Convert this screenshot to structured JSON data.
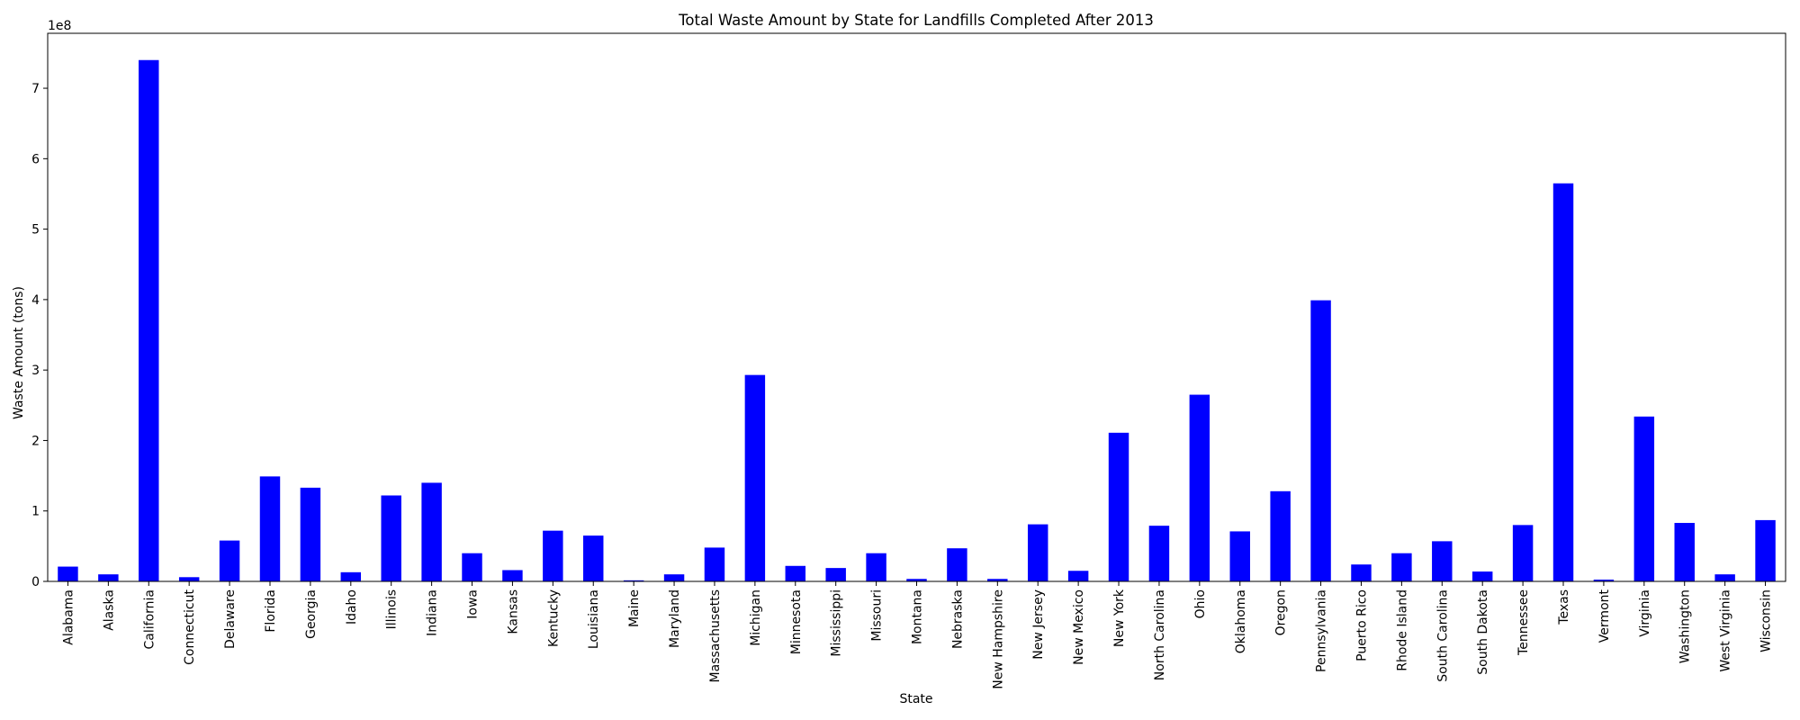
{
  "chart_data": {
    "type": "bar",
    "title": "Total Waste Amount by State for Landfills Completed After 2013",
    "xlabel": "State",
    "ylabel": "Waste Amount (tons)",
    "y_offset_label": "1e8",
    "ylim": [
      0,
      778000000.0
    ],
    "y_ticks": [
      0,
      100000000.0,
      200000000.0,
      300000000.0,
      400000000.0,
      500000000.0,
      600000000.0,
      700000000.0
    ],
    "y_tick_labels": [
      "0",
      "1",
      "2",
      "3",
      "4",
      "5",
      "6",
      "7"
    ],
    "grid": false,
    "legend": "none",
    "bar_color": "#0000ff",
    "categories": [
      "Alabama",
      "Alaska",
      "California",
      "Connecticut",
      "Delaware",
      "Florida",
      "Georgia",
      "Idaho",
      "Illinois",
      "Indiana",
      "Iowa",
      "Kansas",
      "Kentucky",
      "Louisiana",
      "Maine",
      "Maryland",
      "Massachusetts",
      "Michigan",
      "Minnesota",
      "Mississippi",
      "Missouri",
      "Montana",
      "Nebraska",
      "New Hampshire",
      "New Jersey",
      "New Mexico",
      "New York",
      "North Carolina",
      "Ohio",
      "Oklahoma",
      "Oregon",
      "Pennsylvania",
      "Puerto Rico",
      "Rhode Island",
      "South Carolina",
      "South Dakota",
      "Tennessee",
      "Texas",
      "Vermont",
      "Virginia",
      "Washington",
      "West Virginia",
      "Wisconsin"
    ],
    "values": [
      21000000,
      10000000,
      740000000,
      6000000,
      58000000,
      149000000,
      133000000,
      13000000,
      122000000,
      140000000,
      40000000,
      16000000,
      72000000,
      65000000,
      1500000,
      10000000,
      48000000,
      293000000,
      22000000,
      19000000,
      40000000,
      3500000,
      47000000,
      3500000,
      81000000,
      15000000,
      211000000,
      79000000,
      265000000,
      71000000,
      128000000,
      399000000,
      24000000,
      40000000,
      57000000,
      14000000,
      80000000,
      565000000,
      2500000,
      234000000,
      83000000,
      10000000,
      87000000
    ]
  }
}
